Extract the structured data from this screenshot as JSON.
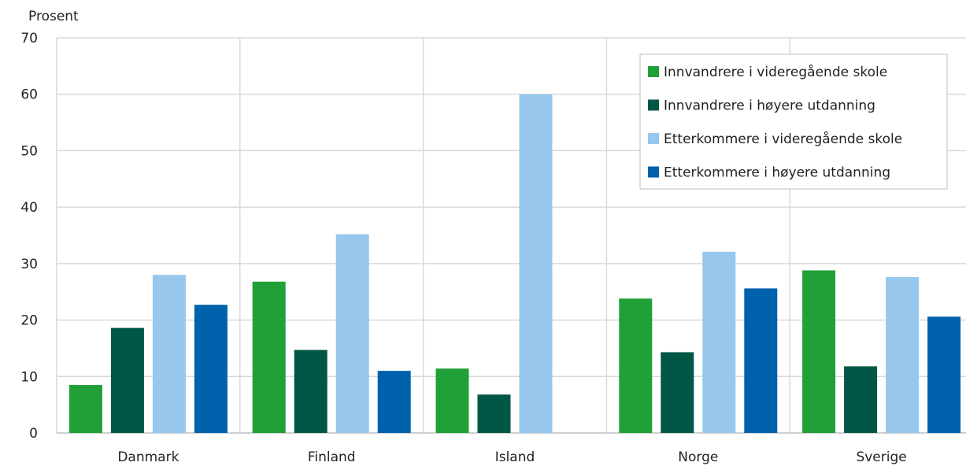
{
  "chart_data": {
    "type": "bar",
    "ylabel": "Prosent",
    "ylim": [
      0,
      70
    ],
    "yticks": [
      0,
      10,
      20,
      30,
      40,
      50,
      60,
      70
    ],
    "categories": [
      "Danmark",
      "Finland",
      "Island",
      "Norge",
      "Sverige"
    ],
    "series": [
      {
        "name": "Innvandrere i videregående skole",
        "color": "#21a038",
        "values": [
          8.5,
          26.8,
          11.4,
          23.8,
          28.8
        ]
      },
      {
        "name": "Innvandrere i høyere utdanning",
        "color": "#005746",
        "values": [
          18.6,
          14.7,
          6.8,
          14.3,
          11.8
        ]
      },
      {
        "name": "Etterkommere i videregående skole",
        "color": "#97c7ec",
        "values": [
          28.0,
          35.2,
          60.0,
          32.1,
          27.6
        ]
      },
      {
        "name": "Etterkommere i høyere utdanning",
        "color": "#0062ad",
        "values": [
          22.7,
          11.0,
          null,
          25.6,
          20.6
        ]
      }
    ],
    "grid": true,
    "legend_position": "top-right"
  }
}
